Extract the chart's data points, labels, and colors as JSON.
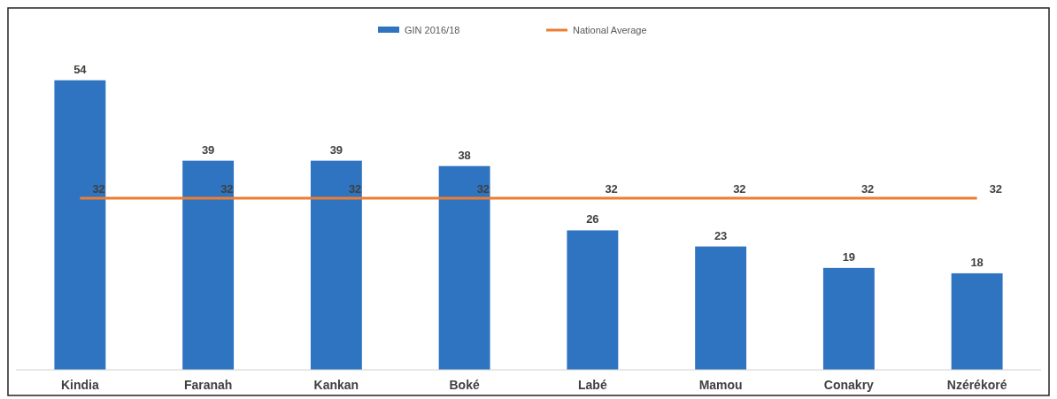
{
  "chart_data": {
    "type": "bar",
    "categories": [
      "Kindia",
      "Faranah",
      "Kankan",
      "Boké",
      "Labé",
      "Mamou",
      "Conakry",
      "Nzérékoré"
    ],
    "series": [
      {
        "name": "GIN 2016/18",
        "color": "#2e74c0",
        "values": [
          54,
          39,
          39,
          38,
          26,
          23,
          19,
          18
        ]
      },
      {
        "name": "National Average",
        "type": "line",
        "color": "#ed7d31",
        "values": [
          32,
          32,
          32,
          32,
          32,
          32,
          32,
          32
        ]
      }
    ],
    "data_labels": true,
    "legend": "top",
    "grid": false,
    "marker": "none",
    "line_style": "solid"
  }
}
